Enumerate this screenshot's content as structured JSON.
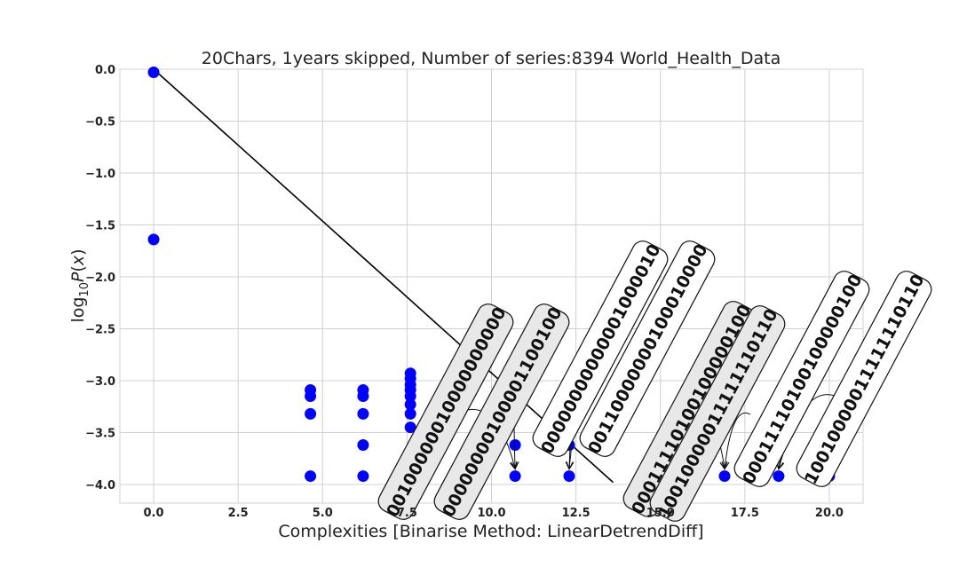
{
  "chart_data": {
    "type": "scatter",
    "title": "20Chars, 1years skipped, Number of series:8394 World_Health_Data",
    "xlabel": "Complexities [Binarise Method: LinearDetrendDiff]",
    "ylabel": "log10 P(x)",
    "xlim": [
      -1.0,
      21.0
    ],
    "ylim": [
      -4.18,
      0.0
    ],
    "xticks": [
      "0.0",
      "2.5",
      "5.0",
      "7.5",
      "10.0",
      "12.5",
      "15.0",
      "17.5",
      "20.0"
    ],
    "xtick_values": [
      0,
      2.5,
      5,
      7.5,
      10,
      12.5,
      15,
      17.5,
      20
    ],
    "yticks": [
      "0.0",
      "−0.5",
      "−1.0",
      "−1.5",
      "−2.0",
      "−2.5",
      "−3.0",
      "−3.5",
      "−4.0"
    ],
    "ytick_values": [
      0,
      -0.5,
      -1,
      -1.5,
      -2,
      -2.5,
      -3,
      -3.5,
      -4
    ],
    "grid": true,
    "marker_color": "#0000ff",
    "line_color": "#000000",
    "annotation_fill": "#e8e8e8",
    "points": [
      {
        "x": 0.0,
        "y": -0.03
      },
      {
        "x": 0.0,
        "y": -1.64
      },
      {
        "x": 4.64,
        "y": -3.09
      },
      {
        "x": 4.64,
        "y": -3.15
      },
      {
        "x": 4.64,
        "y": -3.32
      },
      {
        "x": 4.64,
        "y": -3.92
      },
      {
        "x": 6.2,
        "y": -3.09
      },
      {
        "x": 6.2,
        "y": -3.15
      },
      {
        "x": 6.2,
        "y": -3.32
      },
      {
        "x": 6.2,
        "y": -3.62
      },
      {
        "x": 6.2,
        "y": -3.92
      },
      {
        "x": 7.6,
        "y": -2.93
      },
      {
        "x": 7.6,
        "y": -2.98
      },
      {
        "x": 7.6,
        "y": -3.04
      },
      {
        "x": 7.6,
        "y": -3.09
      },
      {
        "x": 7.6,
        "y": -3.15
      },
      {
        "x": 7.6,
        "y": -3.23
      },
      {
        "x": 7.6,
        "y": -3.32
      },
      {
        "x": 7.6,
        "y": -3.45
      },
      {
        "x": 10.7,
        "y": -3.62
      },
      {
        "x": 10.7,
        "y": -3.92
      },
      {
        "x": 12.3,
        "y": -3.62
      },
      {
        "x": 12.3,
        "y": -3.92
      },
      {
        "x": 16.9,
        "y": -3.92
      },
      {
        "x": 18.5,
        "y": -3.92
      },
      {
        "x": 20.0,
        "y": -3.92
      }
    ],
    "fit_line": {
      "x_start": 0.0,
      "y_start": 0.0,
      "x_end": 13.6,
      "y_end": -3.98
    },
    "annotations": [
      {
        "text": "00100000010000000000",
        "x": 10.7,
        "y": -3.92
      },
      {
        "text": "00000000100001100100",
        "x": 10.7,
        "y": -3.92
      },
      {
        "text": "00000000000001000010",
        "x": 12.3,
        "y": -3.92
      },
      {
        "text": "00110000000100010000",
        "x": 12.3,
        "y": -3.92
      },
      {
        "text": "00011110100100000100",
        "x": 16.9,
        "y": -3.92
      },
      {
        "text": "10010000011111110110",
        "x": 16.9,
        "y": -3.92
      },
      {
        "text": "00011110100100000100",
        "x": 18.5,
        "y": -3.92
      },
      {
        "text": "10010000011111110110",
        "x": 18.5,
        "y": -3.92
      }
    ]
  }
}
